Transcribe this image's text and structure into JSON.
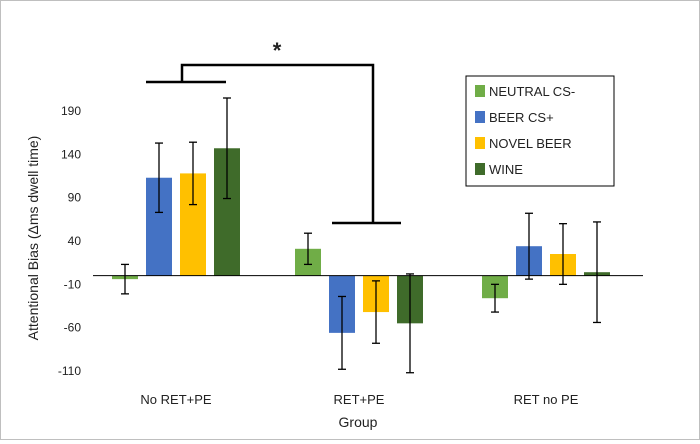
{
  "chart_data": {
    "type": "bar",
    "title": "",
    "xlabel": "Group",
    "ylabel": "Attentional Bias (Δms dwell time)",
    "ylim": [
      -110,
      210
    ],
    "yticks": [
      190,
      140,
      90,
      40,
      -10,
      -60,
      -110
    ],
    "yticks_labels": [
      "190",
      "140",
      "90",
      "40",
      "-10",
      "-60",
      "-110"
    ],
    "categories": [
      "No RET+PE",
      "RET+PE",
      "RET no PE"
    ],
    "series": [
      {
        "name": "NEUTRAL CS-",
        "color": "#70ad47",
        "values": [
          -4,
          31,
          -26
        ],
        "error": [
          17,
          18,
          16
        ]
      },
      {
        "name": "BEER CS+",
        "color": "#4472c4",
        "values": [
          113,
          -66,
          34
        ],
        "error": [
          40,
          42,
          38
        ]
      },
      {
        "name": "NOVEL BEER",
        "color": "#ffc000",
        "values": [
          118,
          -42,
          25
        ],
        "error": [
          36,
          36,
          35
        ]
      },
      {
        "name": "WINE",
        "color": "#3f6b2a",
        "values": [
          147,
          -55,
          4
        ],
        "error": [
          58,
          57,
          58
        ]
      }
    ],
    "annotations": [
      {
        "text": "*",
        "meaning": "significant difference between No RET+PE and RET+PE"
      }
    ],
    "legend_position": "top-right"
  }
}
